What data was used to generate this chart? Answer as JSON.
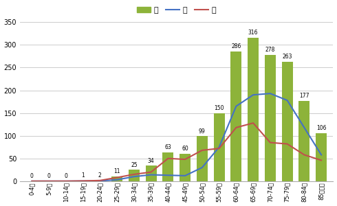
{
  "categories": [
    "0-4歳",
    "5-9歳",
    "10-14歳",
    "15-19歳",
    "20-24歳",
    "25-29歳",
    "30-34歳",
    "35-39歳",
    "40-44歳",
    "45-49歳",
    "50-54歳",
    "55-59歳",
    "60-64歳",
    "65-69歳",
    "70-74歳",
    "75-79歳",
    "80-84歳",
    "85歳以上"
  ],
  "bar_values": [
    0,
    0,
    0,
    1,
    2,
    11,
    25,
    34,
    63,
    60,
    99,
    150,
    286,
    316,
    278,
    263,
    177,
    106
  ],
  "male_values": [
    0,
    0,
    0,
    0.3,
    0.5,
    3,
    10,
    14,
    13,
    12,
    30,
    75,
    165,
    190,
    193,
    178,
    118,
    58
  ],
  "female_values": [
    0,
    0,
    0,
    0.5,
    1.5,
    8,
    15,
    20,
    50,
    48,
    68,
    72,
    118,
    128,
    85,
    82,
    58,
    46
  ],
  "bar_color": "#8DB33A",
  "male_color": "#4472C4",
  "female_color": "#C0504D",
  "ylim": [
    0,
    350
  ],
  "yticks": [
    0,
    50,
    100,
    150,
    200,
    250,
    300,
    350
  ],
  "legend_labels": [
    "計",
    "男",
    "女"
  ],
  "background_color": "#ffffff",
  "grid_color": "#cccccc"
}
